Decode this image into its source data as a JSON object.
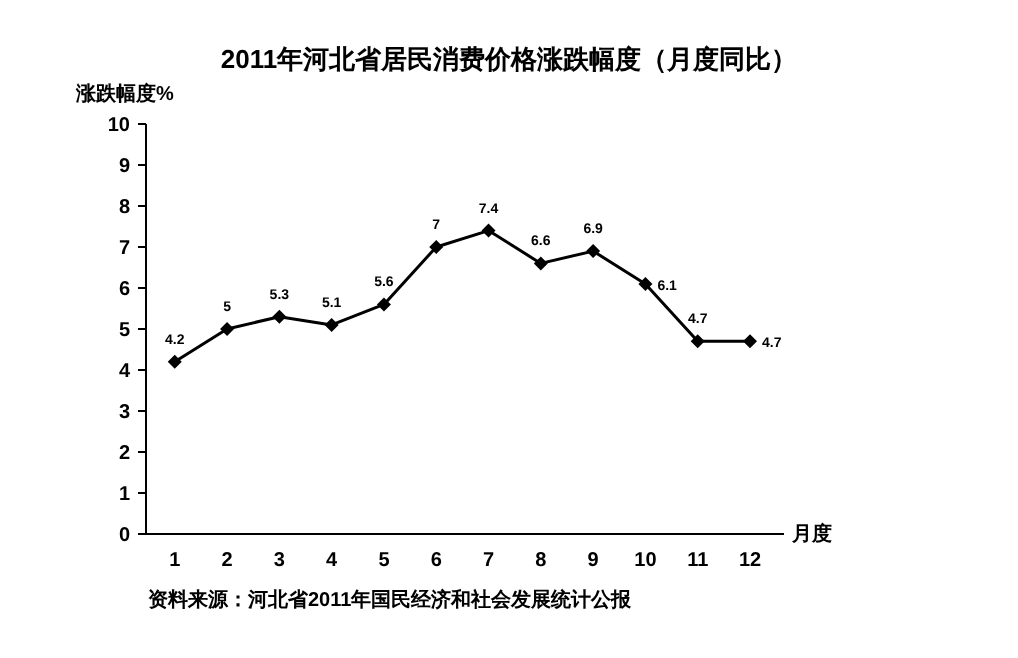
{
  "chart_data": {
    "type": "line",
    "title": "2011年河北省居民消费价格涨跌幅度（月度同比）",
    "ylabel": "涨跌幅度%",
    "xlabel": "月度",
    "annotations": [
      "资料来源：河北省2011年国民经济和社会发展统计公报"
    ],
    "categories": [
      "1",
      "2",
      "3",
      "4",
      "5",
      "6",
      "7",
      "8",
      "9",
      "10",
      "11",
      "12"
    ],
    "values": [
      4.2,
      5,
      5.3,
      5.1,
      5.6,
      7,
      7.4,
      6.6,
      6.9,
      6.1,
      4.7,
      4.7
    ],
    "color": "#000000",
    "marker": "diamond",
    "line_style": "solid",
    "data_labels": true,
    "ylim": [
      0,
      10
    ],
    "yticks": [
      0,
      1,
      2,
      3,
      4,
      5,
      6,
      7,
      8,
      9,
      10
    ]
  }
}
